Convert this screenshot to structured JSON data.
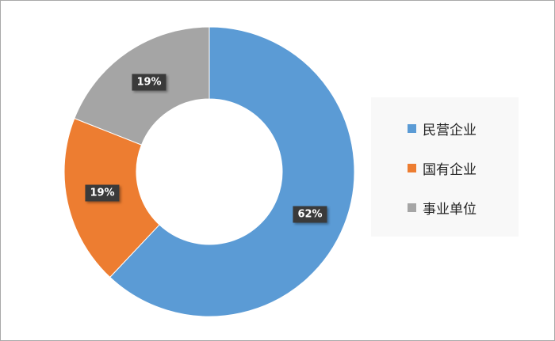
{
  "chart_data": {
    "type": "pie",
    "donut": true,
    "categories": [
      "民营企业",
      "国有企业",
      "事业单位"
    ],
    "values": [
      62,
      19,
      19
    ],
    "labels": [
      "62%",
      "19%",
      "19%"
    ],
    "colors": [
      "#5b9bd5",
      "#ed7d31",
      "#a5a5a5"
    ],
    "legend_position": "right"
  }
}
